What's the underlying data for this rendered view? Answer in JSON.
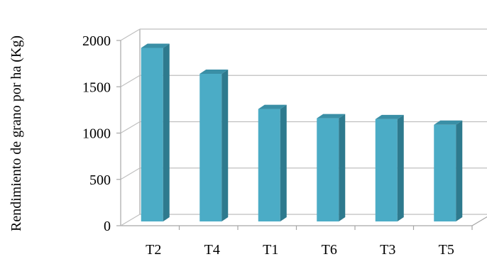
{
  "chart_data": {
    "type": "bar",
    "style": "3d-column",
    "title": "",
    "xlabel": "",
    "ylabel": "Rendimiento de grano por ha (Kg)",
    "categories": [
      "T2",
      "T4",
      "T1",
      "T6",
      "T3",
      "T5"
    ],
    "values": [
      1920,
      1640,
      1260,
      1160,
      1150,
      1090
    ],
    "ylim": [
      0,
      2000
    ],
    "yticks": [
      "0",
      "500",
      "1000",
      "1500",
      "2000"
    ],
    "grid": true,
    "legend": "none",
    "colors": {
      "bar_front": "#4BACC6",
      "bar_side": "#2E7A8E",
      "bar_top": "#3A8FA6",
      "grid": "#BFBFBF",
      "walls": "#A6A6A6"
    }
  }
}
